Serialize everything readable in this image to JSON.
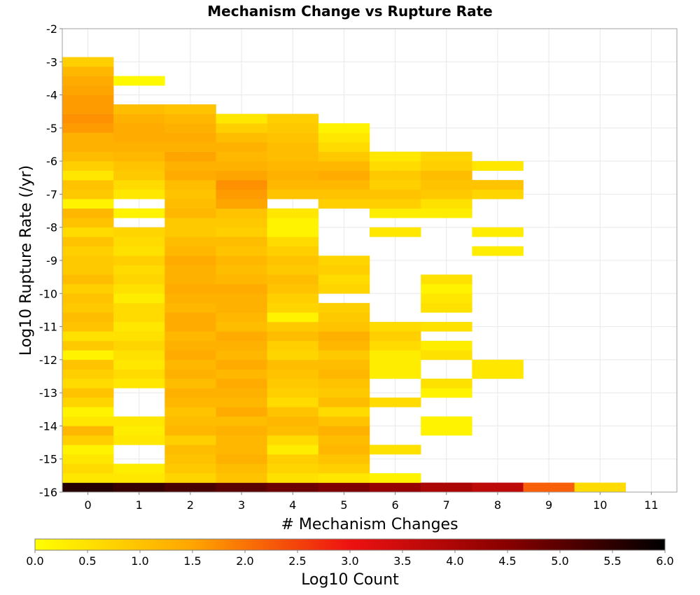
{
  "chart_data": {
    "type": "heatmap",
    "title": "Mechanism Change vs Rupture Rate",
    "xlabel": "# Mechanism Changes",
    "ylabel": "Log10 Rupture Rate (/yr)",
    "colorbar_label": "Log10 Count",
    "x_categories": [
      0,
      1,
      2,
      3,
      4,
      5,
      6,
      7,
      8,
      9,
      10,
      11
    ],
    "xlim": [
      -0.5,
      11.5
    ],
    "ylim": [
      -16,
      -2
    ],
    "y_ticks": [
      -2,
      -3,
      -4,
      -5,
      -6,
      -7,
      -8,
      -9,
      -10,
      -11,
      -12,
      -13,
      -14,
      -15,
      -16
    ],
    "x_ticks": [
      0,
      1,
      2,
      3,
      4,
      5,
      6,
      7,
      8,
      9,
      10,
      11
    ],
    "bin_height": 0.2857,
    "color_range": [
      0.0,
      6.0
    ],
    "color_ticks": [
      "0.0",
      "0.5",
      "1.0",
      "1.5",
      "2.0",
      "2.5",
      "3.0",
      "3.5",
      "4.0",
      "4.5",
      "5.0",
      "5.5",
      "6.0"
    ],
    "colormap": [
      "#ffff00",
      "#ffa500",
      "#ee1111",
      "#880000",
      "#000000"
    ],
    "grid": true,
    "columns": [
      {
        "x": 0,
        "start_y": -16,
        "values": [
          5.6,
          0.4,
          0.6,
          0.4,
          0.2,
          0.8,
          1.2,
          0.4,
          0.2,
          0.7,
          1.0,
          0.6,
          0.8,
          1.0,
          0.2,
          0.9,
          0.5,
          1.0,
          1.1,
          0.9,
          1.0,
          0.8,
          1.1,
          0.9,
          0.9,
          0.8,
          1.0,
          0.6,
          1.0,
          1.2,
          0.2,
          0.9,
          1.0,
          0.4,
          0.8,
          1.1,
          1.3,
          1.3,
          1.6,
          1.7,
          1.6,
          1.6,
          1.5,
          1.4,
          1.2,
          0.8
        ]
      },
      {
        "x": 1,
        "start_y": -16,
        "values": [
          5.4,
          0.4,
          0.3,
          null,
          null,
          0.4,
          0.3,
          0.4,
          null,
          null,
          null,
          0.4,
          0.6,
          0.4,
          0.5,
          0.7,
          0.5,
          0.4,
          0.6,
          0.6,
          0.3,
          0.5,
          0.7,
          0.6,
          0.8,
          0.5,
          0.6,
          0.7,
          null,
          0.2,
          null,
          0.4,
          0.6,
          0.9,
          1.0,
          1.2,
          1.3,
          1.4,
          1.4,
          1.3,
          1.1,
          null,
          null,
          0.1
        ]
      },
      {
        "x": 2,
        "start_y": -16,
        "values": [
          5.2,
          0.7,
          0.9,
          1.0,
          1.1,
          0.8,
          1.2,
          1.1,
          1.0,
          1.2,
          1.3,
          1.1,
          1.3,
          1.2,
          1.4,
          1.3,
          1.2,
          1.4,
          1.4,
          1.2,
          1.3,
          1.4,
          1.3,
          1.3,
          1.4,
          1.2,
          1.1,
          0.9,
          0.9,
          1.2,
          1.1,
          1.0,
          1.1,
          1.4,
          1.3,
          1.5,
          1.3,
          1.4,
          1.3,
          1.2,
          1.0
        ]
      },
      {
        "x": 3,
        "start_y": -16,
        "values": [
          5.0,
          1.0,
          1.1,
          1.3,
          1.2,
          1.2,
          1.3,
          1.1,
          1.4,
          1.2,
          1.3,
          1.4,
          1.2,
          1.4,
          1.2,
          1.3,
          1.4,
          1.1,
          1.2,
          1.3,
          1.3,
          1.4,
          1.2,
          1.1,
          1.2,
          1.0,
          1.1,
          0.8,
          0.9,
          1.0,
          1.5,
          1.6,
          1.7,
          1.5,
          1.3,
          1.2,
          1.3,
          1.1,
          0.8,
          0.4
        ]
      },
      {
        "x": 4,
        "start_y": -16,
        "values": [
          4.8,
          0.5,
          0.7,
          0.8,
          0.3,
          0.6,
          1.1,
          1.2,
          1.0,
          0.6,
          0.8,
          0.9,
          1.0,
          1.1,
          0.7,
          0.8,
          1.1,
          0.9,
          0.2,
          0.7,
          0.8,
          1.0,
          1.1,
          0.9,
          1.0,
          0.8,
          0.6,
          0.2,
          0.2,
          0.4,
          null,
          1.0,
          1.2,
          1.3,
          1.2,
          1.1,
          1.1,
          1.0,
          0.9,
          0.8
        ]
      },
      {
        "x": 5,
        "start_y": -16,
        "values": [
          4.6,
          0.4,
          0.8,
          1.0,
          1.2,
          1.1,
          1.3,
          1.0,
          0.6,
          1.1,
          0.9,
          1.0,
          1.2,
          1.1,
          0.9,
          1.2,
          1.3,
          1.0,
          0.9,
          0.8,
          null,
          0.7,
          0.6,
          0.8,
          0.7,
          null,
          null,
          null,
          null,
          null,
          0.8,
          1.0,
          1.2,
          1.4,
          1.2,
          0.9,
          0.6,
          0.4,
          0.2
        ]
      },
      {
        "x": 6,
        "start_y": -16,
        "values": [
          4.3,
          0.2,
          null,
          null,
          0.5,
          null,
          null,
          null,
          null,
          0.6,
          null,
          null,
          0.3,
          0.3,
          0.3,
          0.6,
          0.8,
          0.6,
          null,
          null,
          null,
          null,
          null,
          null,
          null,
          null,
          null,
          0.4,
          null,
          0.3,
          0.8,
          1.0,
          0.8,
          0.9,
          0.6,
          0.4
        ]
      },
      {
        "x": 7,
        "start_y": -16,
        "values": [
          4.0,
          null,
          null,
          null,
          null,
          null,
          0.2,
          0.2,
          null,
          null,
          0.2,
          0.5,
          null,
          null,
          0.5,
          0.3,
          null,
          0.5,
          null,
          0.5,
          0.4,
          0.2,
          0.5,
          null,
          null,
          null,
          null,
          null,
          null,
          0.3,
          0.5,
          0.9,
          1.0,
          1.1,
          0.8,
          0.7
        ]
      },
      {
        "x": 8,
        "start_y": -16,
        "values": [
          3.7,
          null,
          null,
          null,
          null,
          null,
          null,
          null,
          null,
          null,
          null,
          null,
          0.4,
          0.4,
          null,
          null,
          null,
          null,
          null,
          null,
          null,
          null,
          null,
          null,
          null,
          0.3,
          null,
          0.3,
          null,
          null,
          null,
          0.7,
          1.0,
          null,
          0.4
        ]
      },
      {
        "x": 9,
        "start_y": -16,
        "values": [
          2.2
        ]
      },
      {
        "x": 10,
        "start_y": -16,
        "values": [
          0.6
        ]
      }
    ]
  }
}
